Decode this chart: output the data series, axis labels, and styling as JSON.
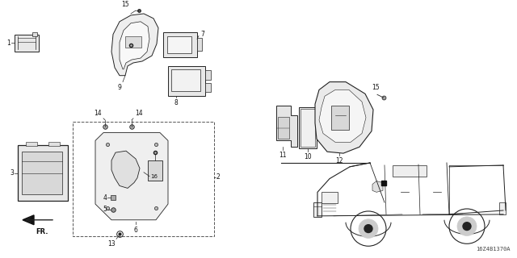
{
  "background_color": "#ffffff",
  "line_color": "#222222",
  "label_color": "#111111",
  "diagram_code": "16Z4B1370A",
  "lw_thin": 0.6,
  "lw_med": 0.8,
  "lw_thick": 1.0,
  "fontsize": 5.5
}
